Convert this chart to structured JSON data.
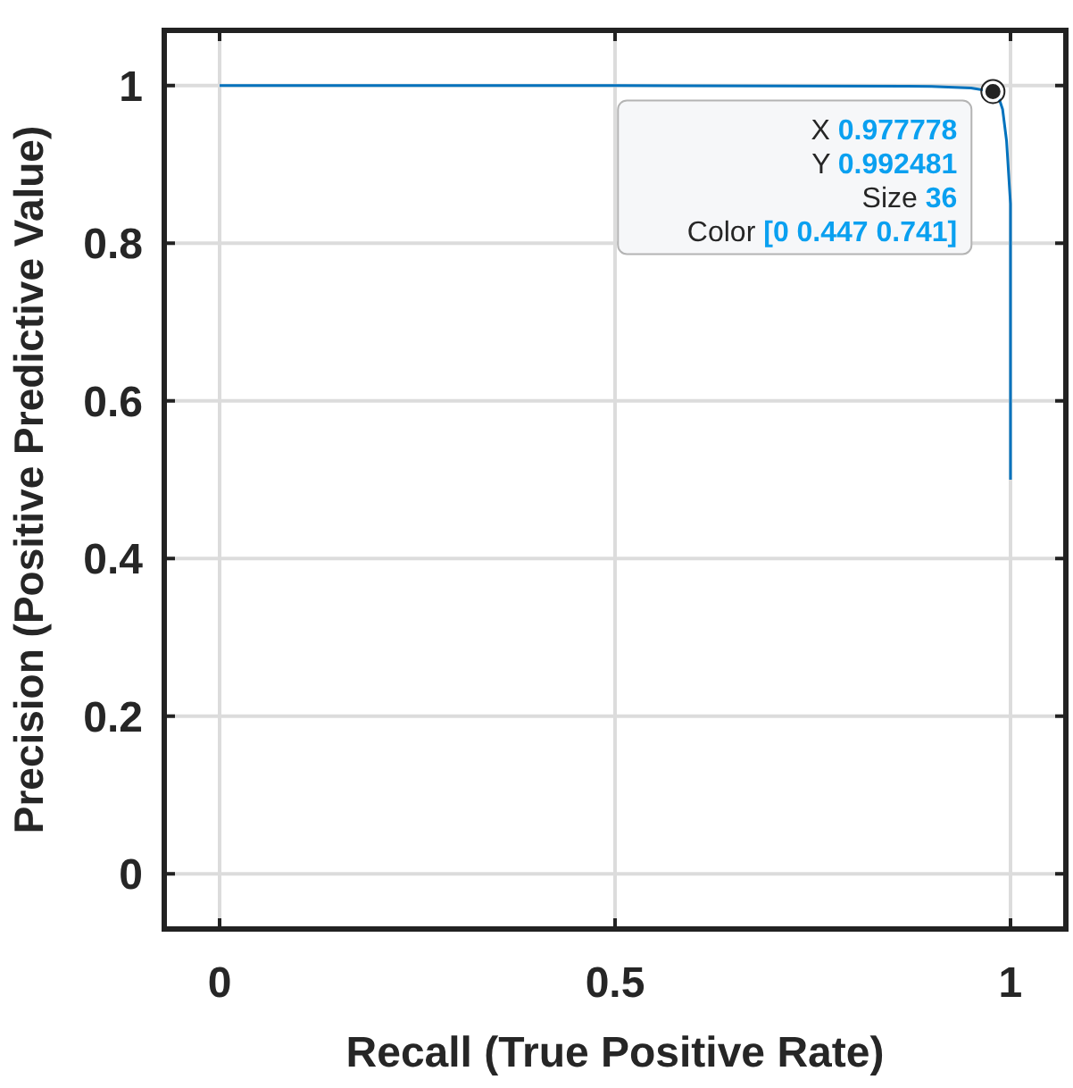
{
  "chart_data": {
    "type": "line",
    "xlabel": "Recall (True Positive Rate)",
    "ylabel": "Precision (Positive Predictive Value)",
    "xlim": [
      -0.07,
      1.07
    ],
    "ylim": [
      -0.07,
      1.07
    ],
    "xticks": [
      0,
      0.5,
      1
    ],
    "yticks": [
      0,
      0.2,
      0.4,
      0.6,
      0.8,
      1
    ],
    "grid": true,
    "marker": "none",
    "line_style": "solid",
    "series": [
      {
        "color": "#0072bd",
        "x": [
          0,
          0.5,
          0.9,
          0.95,
          0.977778,
          0.985,
          0.99,
          0.995,
          1,
          1
        ],
        "values": [
          1,
          1,
          0.999,
          0.997,
          0.992481,
          0.985,
          0.97,
          0.93,
          0.85,
          0.5
        ]
      }
    ],
    "annotations": [
      {
        "text": "X 0.977778",
        "x": 0.977778,
        "y": 0.992481
      },
      "Y 0.992481",
      "Size 36",
      "Color [0 0.447 0.741]"
    ]
  }
}
